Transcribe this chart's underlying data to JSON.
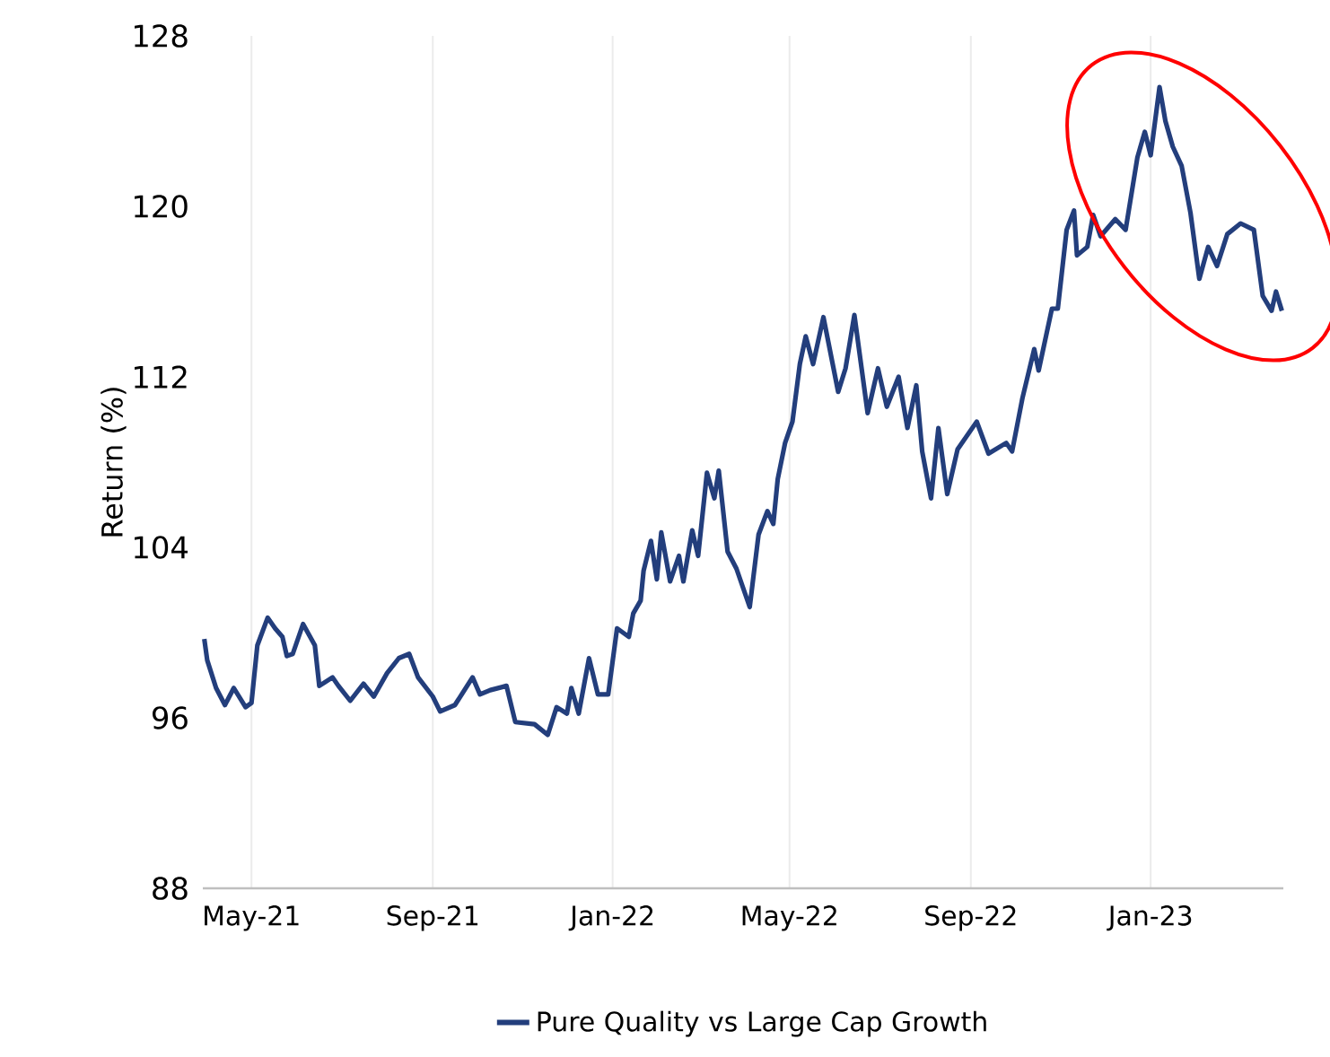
{
  "chart_data": {
    "type": "line",
    "ylabel": "Return (%)",
    "xlim": [
      "2021-03-29",
      "2023-04-01"
    ],
    "xticks": [
      {
        "value": "2021-05-01",
        "label": "May-21"
      },
      {
        "value": "2021-09-01",
        "label": "Sep-21"
      },
      {
        "value": "2022-01-01",
        "label": "Jan-22"
      },
      {
        "value": "2022-05-01",
        "label": "May-22"
      },
      {
        "value": "2022-09-01",
        "label": "Sep-22"
      },
      {
        "value": "2023-01-01",
        "label": "Jan-23"
      }
    ],
    "ylim": [
      88,
      128
    ],
    "yticks": [
      88,
      96,
      104,
      112,
      120,
      128
    ],
    "grid": "x",
    "legend": "bottom",
    "marker": "none",
    "line_style": "solid",
    "series": [
      {
        "name": "Pure Quality vs Large Cap Growth",
        "color": "#233e7c",
        "x": [
          "2021-03-30",
          "2021-04-01",
          "2021-04-07",
          "2021-04-13",
          "2021-04-19",
          "2021-04-27",
          "2021-05-01",
          "2021-05-05",
          "2021-05-12",
          "2021-05-17",
          "2021-05-22",
          "2021-05-25",
          "2021-05-29",
          "2021-06-05",
          "2021-06-13",
          "2021-06-16",
          "2021-06-25",
          "2021-06-29",
          "2021-07-07",
          "2021-07-16",
          "2021-07-23",
          "2021-08-01",
          "2021-08-09",
          "2021-08-16",
          "2021-08-22",
          "2021-09-01",
          "2021-09-06",
          "2021-09-16",
          "2021-09-28",
          "2021-10-03",
          "2021-10-10",
          "2021-10-21",
          "2021-10-27",
          "2021-11-09",
          "2021-11-18",
          "2021-11-24",
          "2021-12-01",
          "2021-12-04",
          "2021-12-09",
          "2021-12-16",
          "2021-12-22",
          "2021-12-29",
          "2022-01-04",
          "2022-01-12",
          "2022-01-15",
          "2022-01-20",
          "2022-01-22",
          "2022-01-27",
          "2022-01-31",
          "2022-02-03",
          "2022-02-09",
          "2022-02-15",
          "2022-02-18",
          "2022-02-24",
          "2022-02-28",
          "2022-03-06",
          "2022-03-11",
          "2022-03-14",
          "2022-03-20",
          "2022-03-26",
          "2022-04-04",
          "2022-04-10",
          "2022-04-16",
          "2022-04-20",
          "2022-04-23",
          "2022-04-28",
          "2022-05-03",
          "2022-05-08",
          "2022-05-12",
          "2022-05-17",
          "2022-05-24",
          "2022-06-03",
          "2022-06-08",
          "2022-06-14",
          "2022-06-23",
          "2022-06-30",
          "2022-07-06",
          "2022-07-14",
          "2022-07-20",
          "2022-07-26",
          "2022-07-30",
          "2022-08-05",
          "2022-08-10",
          "2022-08-16",
          "2022-08-23",
          "2022-09-05",
          "2022-09-13",
          "2022-09-25",
          "2022-09-29",
          "2022-10-06",
          "2022-10-14",
          "2022-10-17",
          "2022-10-26",
          "2022-10-30",
          "2022-11-05",
          "2022-11-10",
          "2022-11-12",
          "2022-11-19",
          "2022-11-23",
          "2022-11-28",
          "2022-12-08",
          "2022-12-15",
          "2022-12-23",
          "2022-12-28",
          "2023-01-01",
          "2023-01-07",
          "2023-01-11",
          "2023-01-16",
          "2023-01-22",
          "2023-01-28",
          "2023-02-03",
          "2023-02-09",
          "2023-02-15",
          "2023-02-22",
          "2023-03-03",
          "2023-03-12",
          "2023-03-18",
          "2023-03-24",
          "2023-03-27",
          "2023-03-31"
        ],
        "values": [
          99.7,
          98.7,
          97.4,
          96.6,
          97.4,
          96.5,
          96.7,
          99.4,
          100.7,
          100.2,
          99.8,
          98.9,
          99.0,
          100.4,
          99.4,
          97.5,
          97.9,
          97.5,
          96.8,
          97.6,
          97.0,
          98.1,
          98.8,
          99.0,
          97.9,
          97.0,
          96.3,
          96.6,
          97.9,
          97.1,
          97.3,
          97.5,
          95.8,
          95.7,
          95.2,
          96.5,
          96.2,
          97.4,
          96.2,
          98.8,
          97.1,
          97.1,
          100.2,
          99.8,
          100.9,
          101.5,
          102.9,
          104.3,
          102.5,
          104.7,
          102.4,
          103.6,
          102.4,
          104.8,
          103.6,
          107.5,
          106.3,
          107.6,
          103.8,
          103.0,
          101.2,
          104.6,
          105.7,
          105.1,
          107.2,
          108.9,
          109.9,
          112.6,
          113.9,
          112.6,
          114.8,
          111.3,
          112.4,
          114.9,
          110.3,
          112.4,
          110.6,
          112.0,
          109.6,
          111.6,
          108.5,
          106.3,
          109.6,
          106.5,
          108.6,
          109.9,
          108.4,
          108.9,
          108.5,
          111.0,
          113.3,
          112.3,
          115.2,
          115.2,
          118.9,
          119.8,
          117.7,
          118.1,
          119.6,
          118.6,
          119.4,
          118.9,
          122.3,
          123.5,
          122.4,
          125.6,
          124.0,
          122.8,
          121.9,
          119.7,
          116.6,
          118.1,
          117.2,
          118.7,
          119.2,
          118.9,
          115.8,
          115.1,
          116.0,
          115.1
        ]
      }
    ]
  }
}
